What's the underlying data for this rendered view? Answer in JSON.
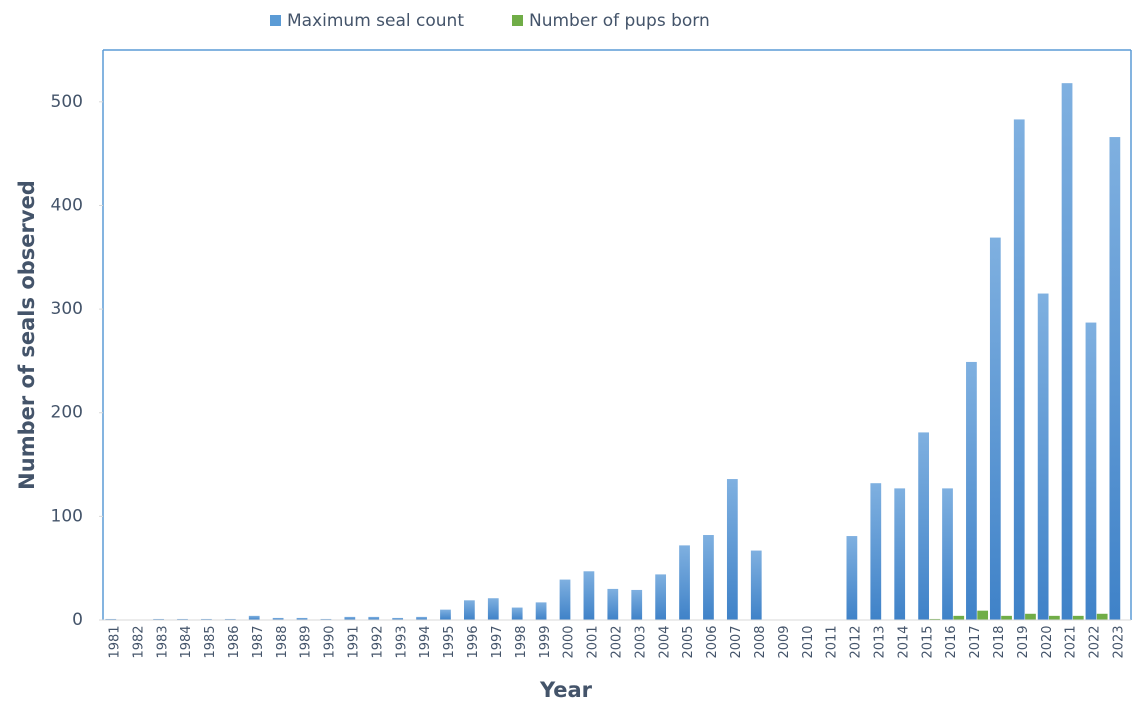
{
  "chart_data": {
    "type": "bar",
    "x_label": "Year",
    "y_label": "Number of seals observed",
    "categories": [
      "1981",
      "1982",
      "1983",
      "1984",
      "1985",
      "1986",
      "1987",
      "1988",
      "1989",
      "1990",
      "1991",
      "1992",
      "1993",
      "1994",
      "1995",
      "1996",
      "1997",
      "1998",
      "1999",
      "2000",
      "2001",
      "2002",
      "2003",
      "2004",
      "2005",
      "2006",
      "2007",
      "2008",
      "2009",
      "2010",
      "2011",
      "2012",
      "2013",
      "2014",
      "2015",
      "2016",
      "2017",
      "2018",
      "2019",
      "2020",
      "2021",
      "2022",
      "2023"
    ],
    "series": [
      {
        "name": "Maximum seal count",
        "color": "#5b9bd5",
        "values": [
          1,
          0,
          1,
          1,
          1,
          1,
          4,
          2,
          2,
          1,
          3,
          3,
          2,
          3,
          10,
          19,
          21,
          12,
          17,
          39,
          47,
          30,
          29,
          44,
          72,
          82,
          136,
          67,
          0,
          0,
          0,
          81,
          132,
          127,
          181,
          127,
          249,
          369,
          483,
          315,
          518,
          287,
          466
        ]
      },
      {
        "name": "Number of pups born",
        "color": "#70ad47",
        "values": [
          0,
          0,
          0,
          0,
          0,
          0,
          0,
          0,
          0,
          0,
          0,
          0,
          0,
          0,
          0,
          0,
          0,
          0,
          0,
          0,
          0,
          0,
          0,
          0,
          0,
          0,
          0,
          0,
          0,
          0,
          0,
          0,
          0,
          0,
          1,
          4,
          9,
          4,
          6,
          4,
          4,
          6,
          0
        ]
      }
    ],
    "ylim": [
      0,
      550
    ],
    "yticks": [
      0,
      100,
      200,
      300,
      400,
      500
    ],
    "legend": "top"
  }
}
